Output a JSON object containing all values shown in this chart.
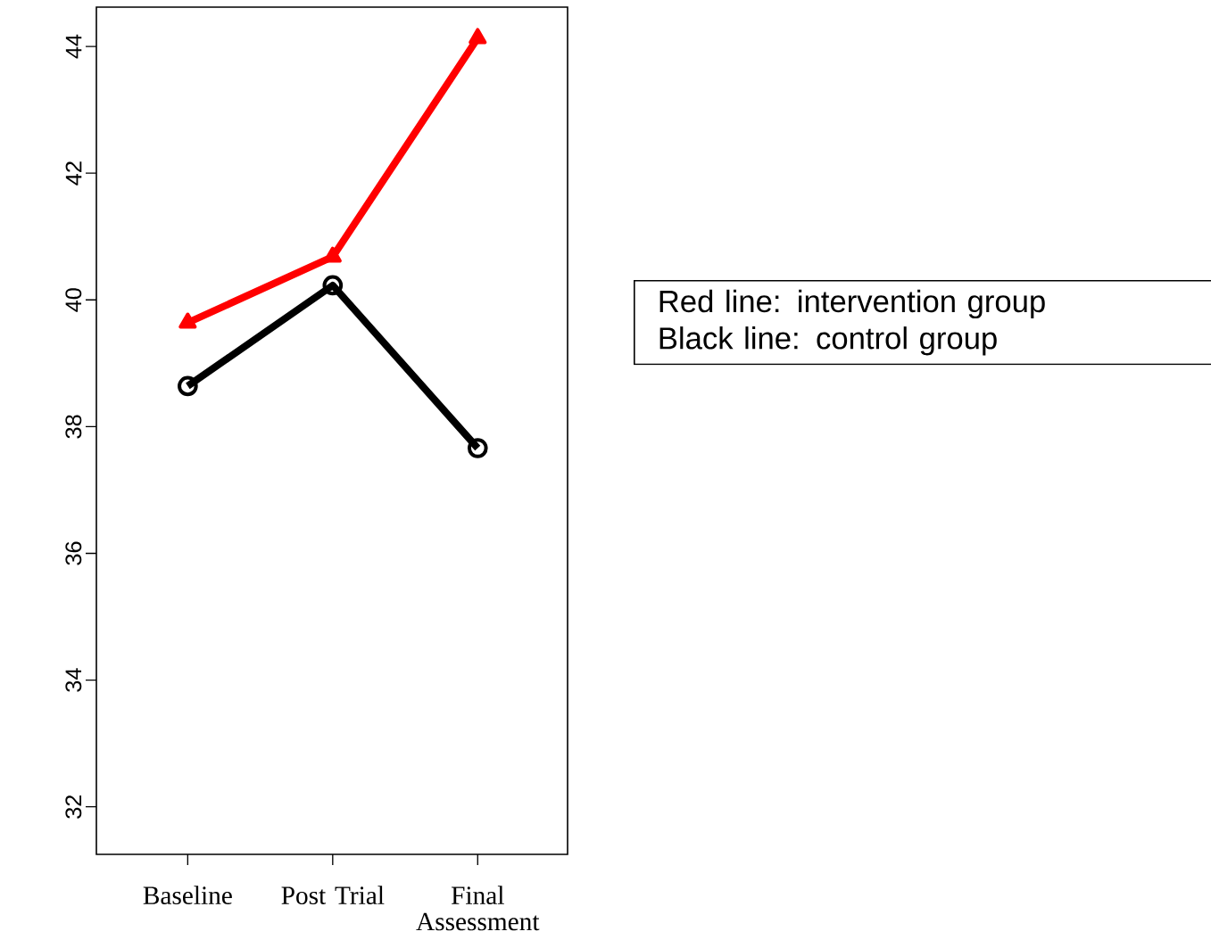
{
  "chart_data": {
    "type": "line",
    "categories": [
      "Baseline",
      "Post Trial",
      "Final Assessment"
    ],
    "series": [
      {
        "name": "Red line: intervention group",
        "color": "#ff0000",
        "marker": "triangle",
        "values": [
          39.64,
          40.68,
          44.13
        ]
      },
      {
        "name": "Black line: control group",
        "color": "#000000",
        "marker": "circle",
        "values": [
          38.64,
          40.23,
          37.66
        ]
      }
    ],
    "ylim": [
      31.25,
      44.62
    ],
    "yticks": [
      32,
      34,
      36,
      38,
      40,
      42,
      44
    ],
    "grid": false
  }
}
